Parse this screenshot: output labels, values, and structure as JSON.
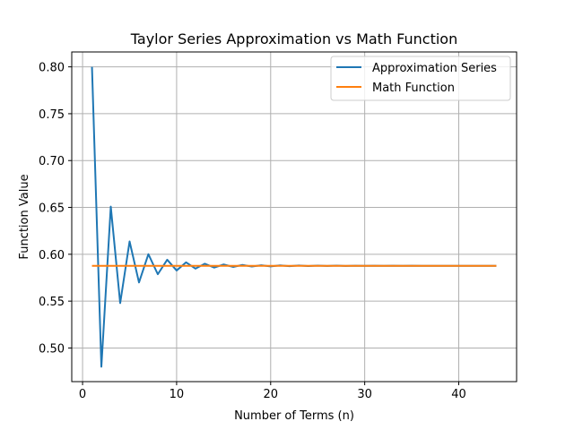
{
  "chart_data": {
    "type": "line",
    "title": "Taylor Series Approximation vs Math Function",
    "xlabel": "Number of Terms (n)",
    "ylabel": "Function Value",
    "xlim": [
      -1.15,
      46.15
    ],
    "ylim": [
      0.4641,
      0.8159
    ],
    "xticks": [
      0,
      10,
      20,
      30,
      40
    ],
    "yticks": [
      0.5,
      0.55,
      0.6,
      0.65,
      0.7,
      0.75,
      0.8
    ],
    "ytick_labels": [
      "0.50",
      "0.55",
      "0.60",
      "0.65",
      "0.70",
      "0.75",
      "0.80"
    ],
    "grid": true,
    "legend_position": "top-right",
    "x": [
      1,
      2,
      3,
      4,
      5,
      6,
      7,
      8,
      9,
      10,
      11,
      12,
      13,
      14,
      15,
      16,
      17,
      18,
      19,
      20,
      21,
      22,
      23,
      24,
      25,
      26,
      27,
      28,
      29,
      30,
      31,
      32,
      33,
      34,
      35,
      36,
      37,
      38,
      39,
      40,
      41,
      42,
      43,
      44
    ],
    "series": [
      {
        "name": "Approximation Series",
        "color": "#1f77b4",
        "values": [
          0.8,
          0.48,
          0.6509,
          0.5479,
          0.6137,
          0.5699,
          0.6001,
          0.5787,
          0.5942,
          0.5827,
          0.5914,
          0.5847,
          0.5899,
          0.5858,
          0.5891,
          0.5865,
          0.5886,
          0.5869,
          0.5883,
          0.5871,
          0.5881,
          0.5873,
          0.588,
          0.5874,
          0.5879,
          0.5875,
          0.5879,
          0.5875,
          0.5878,
          0.5876,
          0.5878,
          0.5876,
          0.5878,
          0.5876,
          0.5878,
          0.5876,
          0.5877,
          0.5876,
          0.5877,
          0.5877,
          0.5877,
          0.5877,
          0.5877,
          0.5877
        ]
      },
      {
        "name": "Math Function",
        "color": "#ff7f0e",
        "values": [
          0.5877,
          0.5877,
          0.5877,
          0.5877,
          0.5877,
          0.5877,
          0.5877,
          0.5877,
          0.5877,
          0.5877,
          0.5877,
          0.5877,
          0.5877,
          0.5877,
          0.5877,
          0.5877,
          0.5877,
          0.5877,
          0.5877,
          0.5877,
          0.5877,
          0.5877,
          0.5877,
          0.5877,
          0.5877,
          0.5877,
          0.5877,
          0.5877,
          0.5877,
          0.5877,
          0.5877,
          0.5877,
          0.5877,
          0.5877,
          0.5877,
          0.5877,
          0.5877,
          0.5877,
          0.5877,
          0.5877,
          0.5877,
          0.5877,
          0.5877,
          0.5877
        ]
      }
    ]
  }
}
